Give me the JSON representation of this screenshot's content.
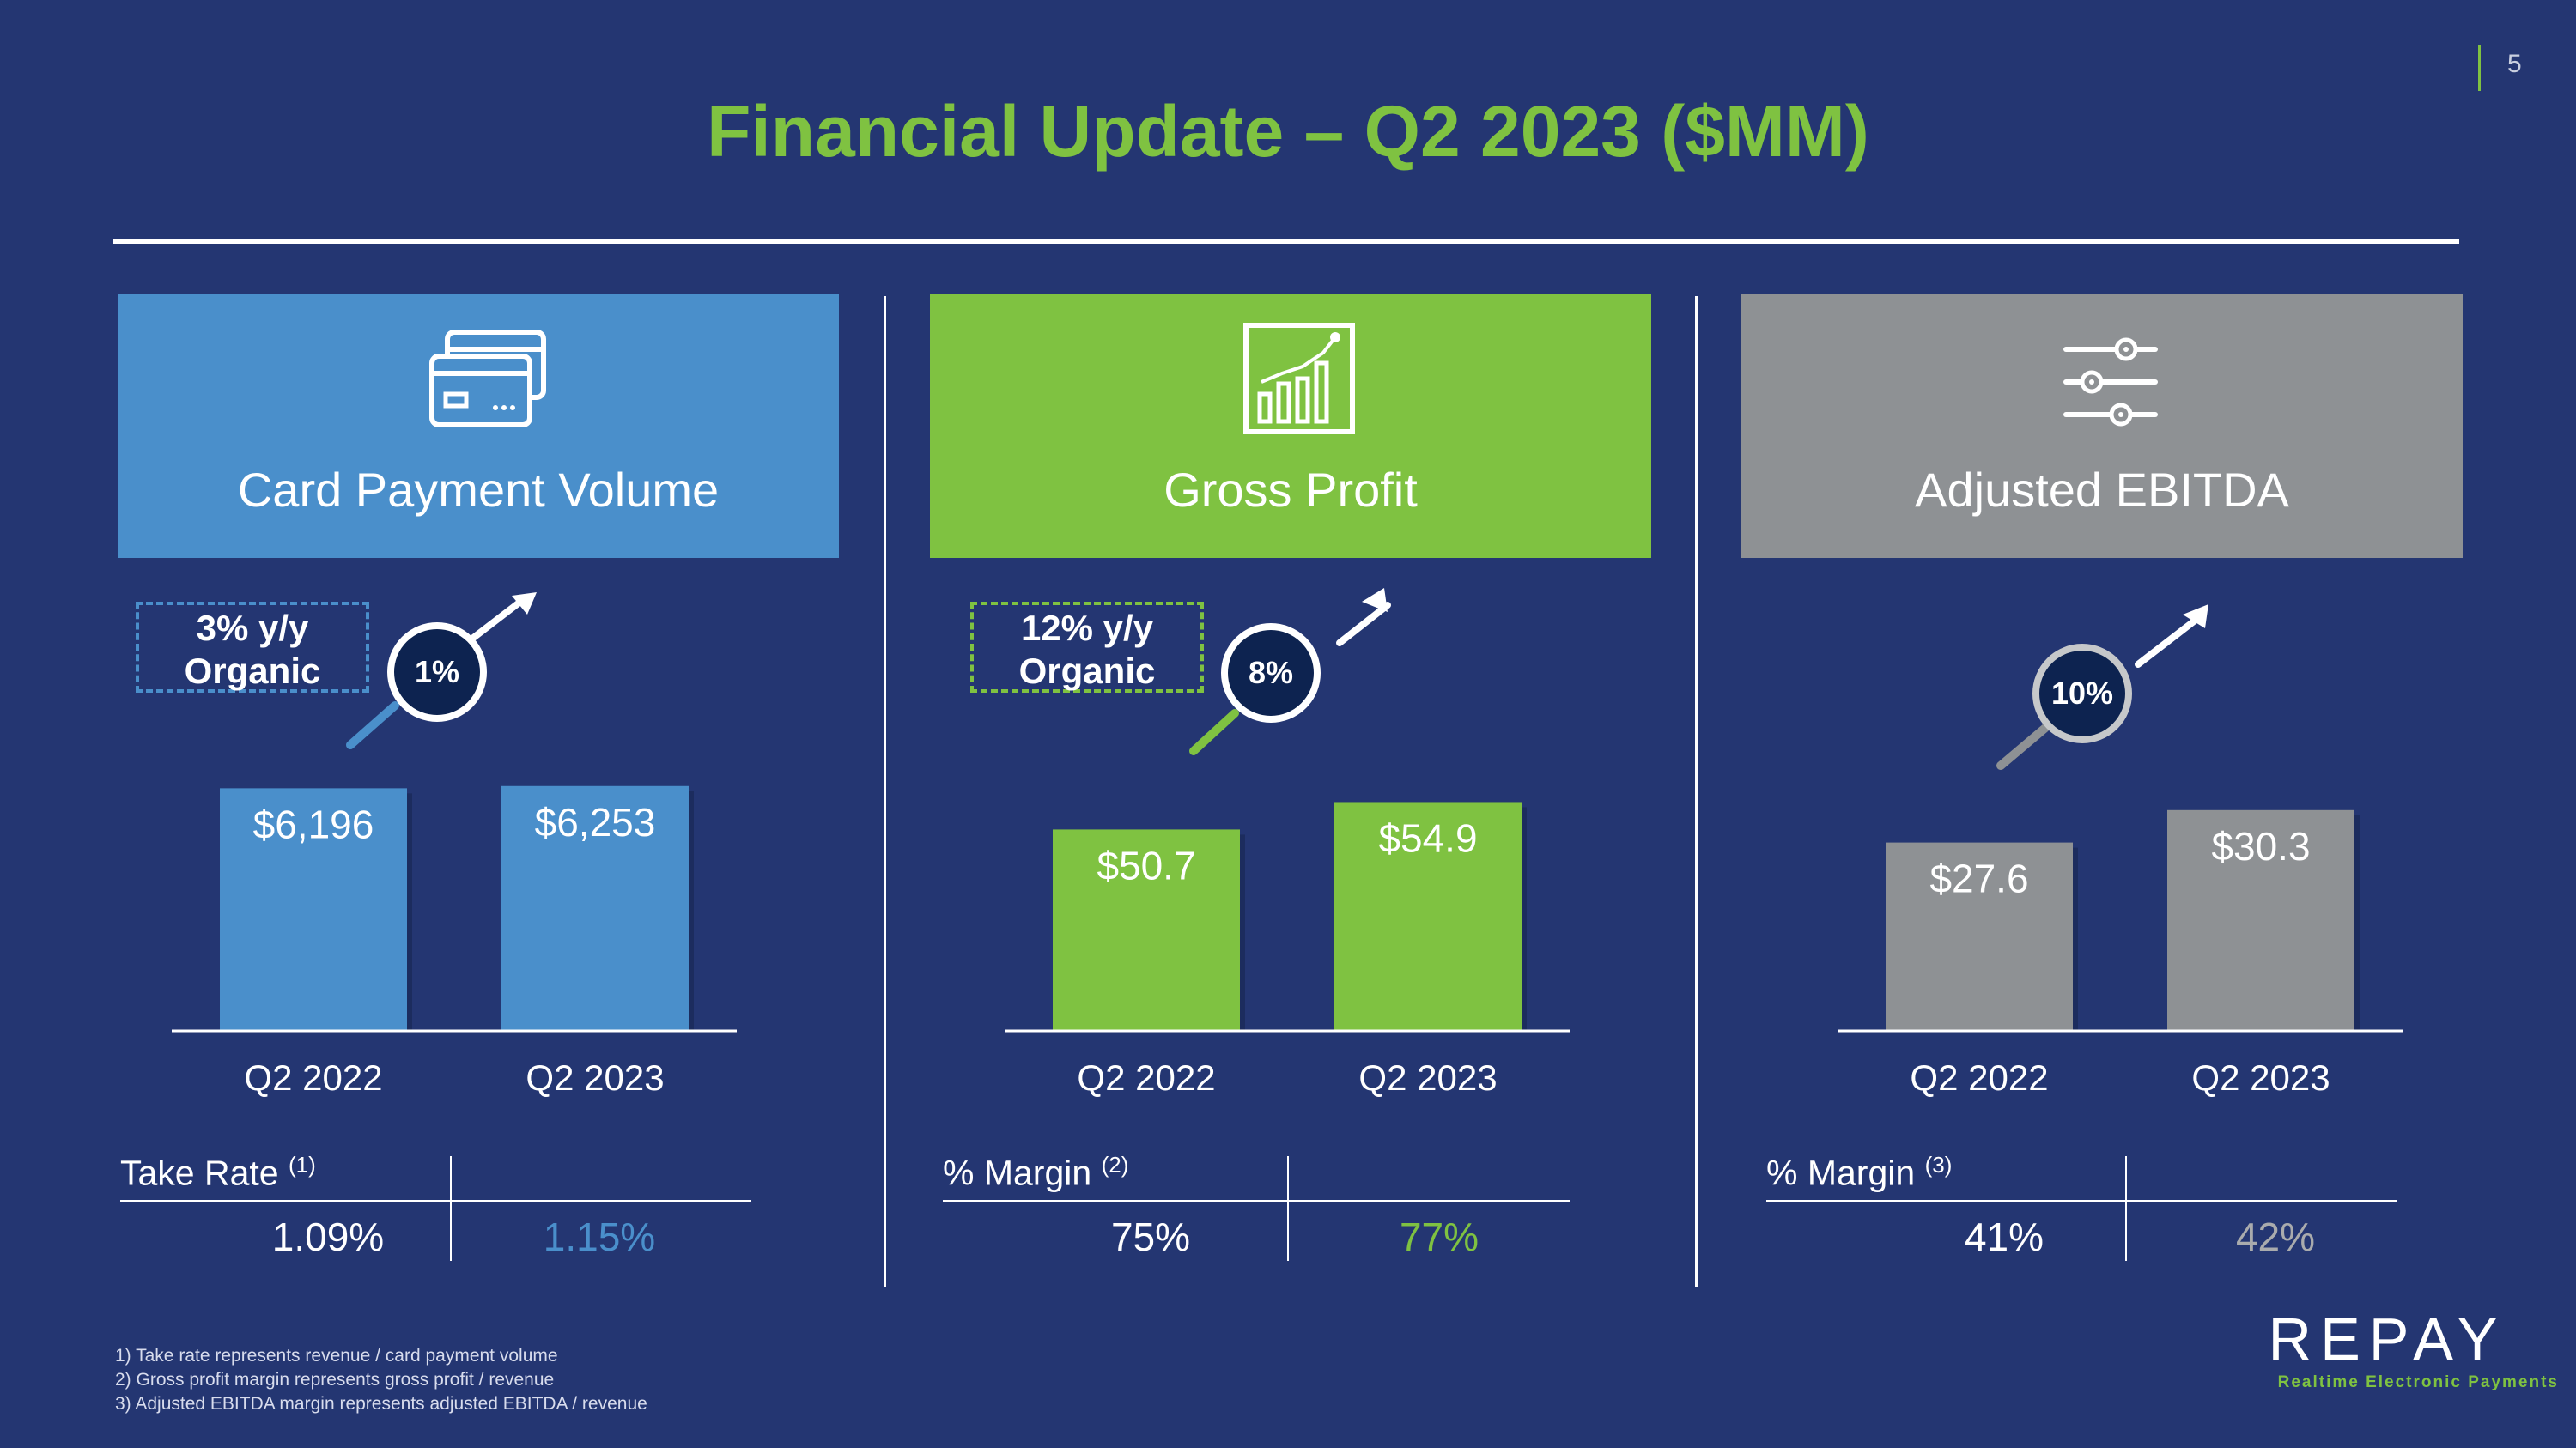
{
  "page_number": "5",
  "title": "Financial Update – Q2 2023 ($MM)",
  "colors": {
    "background": "#243672",
    "blue": "#4a8fcb",
    "green": "#7fc241",
    "gray": "#8e9194",
    "badge_fill": "#0d2350"
  },
  "panels": [
    {
      "label": "Card Payment Volume",
      "icon": "credit-cards-icon",
      "organic": "3% y/y\nOrganic",
      "growth_badge": "1%",
      "metric_label": "Take Rate",
      "metric_note": "(1)",
      "metric_values": [
        "1.09%",
        "1.15%"
      ]
    },
    {
      "label": "Gross Profit",
      "icon": "bar-chart-growth-icon",
      "organic": "12% y/y\nOrganic",
      "growth_badge": "8%",
      "metric_label": "% Margin",
      "metric_note": "(2)",
      "metric_values": [
        "75%",
        "77%"
      ]
    },
    {
      "label": "Adjusted EBITDA",
      "icon": "sliders-icon",
      "organic": "",
      "growth_badge": "10%",
      "metric_label": "% Margin",
      "metric_note": "(3)",
      "metric_values": [
        "41%",
        "42%"
      ]
    }
  ],
  "chart_data": [
    {
      "type": "bar",
      "title": "Card Payment Volume",
      "categories": [
        "Q2 2022",
        "Q2 2023"
      ],
      "values": [
        6196,
        6253
      ],
      "value_labels": [
        "$6,196",
        "$6,253"
      ],
      "ylim": [
        0,
        7700
      ],
      "color": "#4a8fcb"
    },
    {
      "type": "bar",
      "title": "Gross Profit",
      "categories": [
        "Q2 2022",
        "Q2 2023"
      ],
      "values": [
        50.7,
        54.9
      ],
      "value_labels": [
        "$50.7",
        "$54.9"
      ],
      "ylim": [
        20,
        66
      ],
      "color": "#7fc241"
    },
    {
      "type": "bar",
      "title": "Adjusted EBITDA",
      "categories": [
        "Q2 2022",
        "Q2 2023"
      ],
      "values": [
        27.6,
        30.3
      ],
      "value_labels": [
        "$27.6",
        "$30.3"
      ],
      "ylim": [
        12,
        37
      ],
      "color": "#8e9194"
    }
  ],
  "footnotes": [
    "1)    Take rate represents revenue / card payment volume",
    "2)    Gross profit margin represents gross profit / revenue",
    "3)    Adjusted EBITDA margin represents adjusted EBITDA / revenue"
  ],
  "logo": {
    "name": "REPAY",
    "tagline": "Realtime Electronic Payments"
  }
}
